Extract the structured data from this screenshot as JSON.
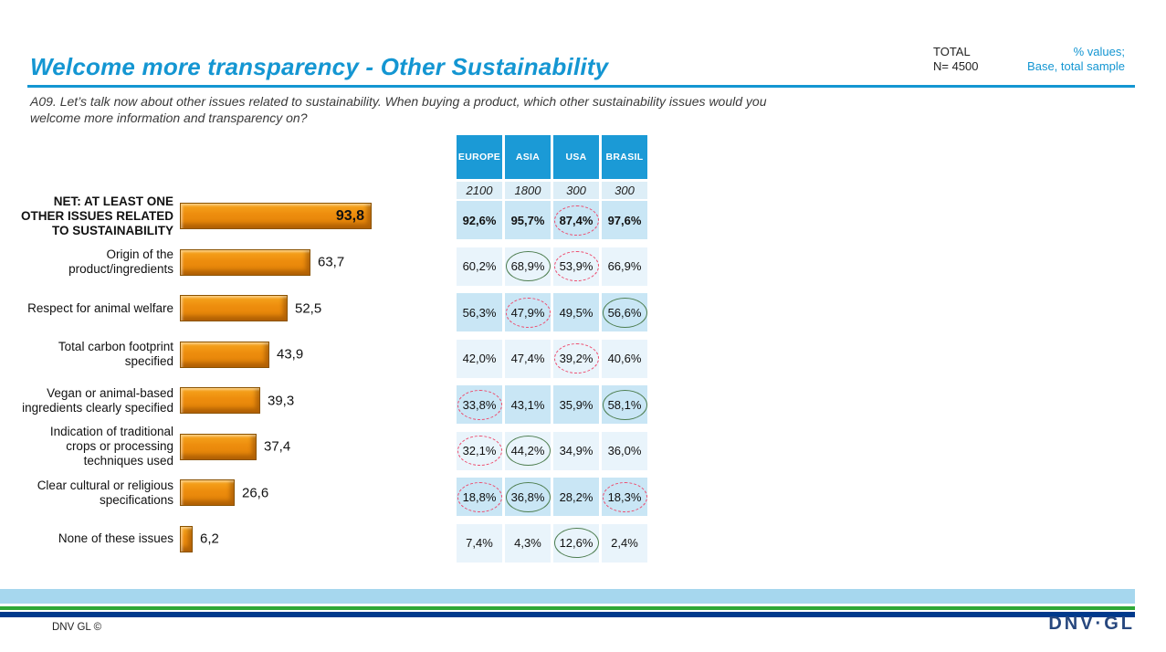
{
  "header": {
    "title": "Welcome more transparency  - Other Sustainability",
    "total_label": "TOTAL",
    "total_n": "N= 4500",
    "values_note": "% values;",
    "base_note": "Base, total sample"
  },
  "question": "A09. Let’s talk now about other issues related to sustainability. When buying a product, which other sustainability issues would you\nwelcome more information and transparency on?",
  "columns": [
    "EUROPE",
    "ASIA",
    "USA",
    "BRASIL"
  ],
  "bases": [
    "2100",
    "1800",
    "300",
    "300"
  ],
  "rows": [
    {
      "label": "NET: AT LEAST ONE\nOTHER ISSUES RELATED\nTO SUSTAINABILITY",
      "bold": true,
      "value": 93.8,
      "value_label": "93,8",
      "value_inside": true,
      "cells": [
        {
          "text": "92,6%",
          "circle": "none"
        },
        {
          "text": "95,7%",
          "circle": "none"
        },
        {
          "text": "87,4%",
          "circle": "red"
        },
        {
          "text": "97,6%",
          "circle": "none"
        }
      ]
    },
    {
      "label": "Origin of the\nproduct/ingredients",
      "bold": false,
      "value": 63.7,
      "value_label": "63,7",
      "value_inside": false,
      "cells": [
        {
          "text": "60,2%",
          "circle": "none"
        },
        {
          "text": "68,9%",
          "circle": "green"
        },
        {
          "text": "53,9%",
          "circle": "red"
        },
        {
          "text": "66,9%",
          "circle": "none"
        }
      ]
    },
    {
      "label": "Respect for animal welfare",
      "bold": false,
      "value": 52.5,
      "value_label": "52,5",
      "value_inside": false,
      "cells": [
        {
          "text": "56,3%",
          "circle": "none"
        },
        {
          "text": "47,9%",
          "circle": "red"
        },
        {
          "text": "49,5%",
          "circle": "none"
        },
        {
          "text": "56,6%",
          "circle": "green"
        }
      ]
    },
    {
      "label": "Total carbon footprint\nspecified",
      "bold": false,
      "value": 43.9,
      "value_label": "43,9",
      "value_inside": false,
      "cells": [
        {
          "text": "42,0%",
          "circle": "none"
        },
        {
          "text": "47,4%",
          "circle": "none"
        },
        {
          "text": "39,2%",
          "circle": "red"
        },
        {
          "text": "40,6%",
          "circle": "none"
        }
      ]
    },
    {
      "label": "Vegan or animal-based\ningredients clearly specified",
      "bold": false,
      "value": 39.3,
      "value_label": "39,3",
      "value_inside": false,
      "cells": [
        {
          "text": "33,8%",
          "circle": "red"
        },
        {
          "text": "43,1%",
          "circle": "none"
        },
        {
          "text": "35,9%",
          "circle": "none"
        },
        {
          "text": "58,1%",
          "circle": "green"
        }
      ]
    },
    {
      "label": "Indication of traditional\ncrops or processing\ntechniques used",
      "bold": false,
      "value": 37.4,
      "value_label": "37,4",
      "value_inside": false,
      "cells": [
        {
          "text": "32,1%",
          "circle": "red"
        },
        {
          "text": "44,2%",
          "circle": "green"
        },
        {
          "text": "34,9%",
          "circle": "none"
        },
        {
          "text": "36,0%",
          "circle": "none"
        }
      ]
    },
    {
      "label": "Clear cultural or religious\nspecifications",
      "bold": false,
      "value": 26.6,
      "value_label": "26,6",
      "value_inside": false,
      "cells": [
        {
          "text": "18,8%",
          "circle": "red"
        },
        {
          "text": "36,8%",
          "circle": "green"
        },
        {
          "text": "28,2%",
          "circle": "none"
        },
        {
          "text": "18,3%",
          "circle": "red"
        }
      ]
    },
    {
      "label": "None of these issues",
      "bold": false,
      "value": 6.2,
      "value_label": "6,2",
      "value_inside": false,
      "cells": [
        {
          "text": "7,4%",
          "circle": "none"
        },
        {
          "text": "4,3%",
          "circle": "none"
        },
        {
          "text": "12,6%",
          "circle": "green"
        },
        {
          "text": "2,4%",
          "circle": "none"
        }
      ]
    }
  ],
  "footer": {
    "copyright": "DNV GL ©",
    "logo": "DNV·GL"
  },
  "colors": {
    "accent_blue": "#1496d2",
    "table_header_blue": "#1b9ad6",
    "row_dark": "#c9e6f5",
    "row_light": "#e9f4fb",
    "bar_orange": "#ee8e0e",
    "circle_green": "#4e7e50",
    "circle_red": "#ee4a6c",
    "footer_lightblue": "#a6d7ee",
    "footer_green": "#2ea836",
    "footer_navy": "#003a8c"
  },
  "chart_data": {
    "type": "bar",
    "orientation": "horizontal",
    "title": "Welcome more transparency - Other Sustainability",
    "subtitle": "A09. Let’s talk now about other issues related to sustainability. When buying a product, which other sustainability issues would you welcome more information and transparency on?",
    "unit": "% values; Base, total sample",
    "categories": [
      "NET: AT LEAST ONE OTHER ISSUES RELATED TO SUSTAINABILITY",
      "Origin of the product/ingredients",
      "Respect for animal welfare",
      "Total carbon footprint specified",
      "Vegan or animal-based ingredients clearly specified",
      "Indication of traditional crops or processing techniques used",
      "Clear cultural or religious specifications",
      "None of these issues"
    ],
    "values": [
      93.8,
      63.7,
      52.5,
      43.9,
      39.3,
      37.4,
      26.6,
      6.2
    ],
    "series": [
      {
        "name": "TOTAL",
        "n": 4500,
        "values": [
          93.8,
          63.7,
          52.5,
          43.9,
          39.3,
          37.4,
          26.6,
          6.2
        ]
      },
      {
        "name": "EUROPE",
        "n": 2100,
        "values": [
          92.6,
          60.2,
          56.3,
          42.0,
          33.8,
          32.1,
          18.8,
          7.4
        ]
      },
      {
        "name": "ASIA",
        "n": 1800,
        "values": [
          95.7,
          68.9,
          47.9,
          47.4,
          43.1,
          44.2,
          36.8,
          4.3
        ]
      },
      {
        "name": "USA",
        "n": 300,
        "values": [
          87.4,
          53.9,
          49.5,
          39.2,
          35.9,
          34.9,
          28.2,
          12.6
        ]
      },
      {
        "name": "BRASIL",
        "n": 300,
        "values": [
          97.6,
          66.9,
          56.6,
          40.6,
          58.1,
          36.0,
          18.3,
          2.4
        ]
      }
    ],
    "annotations": {
      "circled_significantly_high_green": [
        {
          "row": "Origin of the product/ingredients",
          "column": "ASIA",
          "value": 68.9
        },
        {
          "row": "Respect for animal welfare",
          "column": "BRASIL",
          "value": 56.6
        },
        {
          "row": "Vegan or animal-based ingredients clearly specified",
          "column": "BRASIL",
          "value": 58.1
        },
        {
          "row": "Indication of traditional crops or processing techniques used",
          "column": "ASIA",
          "value": 44.2
        },
        {
          "row": "Clear cultural or religious specifications",
          "column": "ASIA",
          "value": 36.8
        },
        {
          "row": "None of these issues",
          "column": "USA",
          "value": 12.6
        }
      ],
      "circled_significantly_low_red_dashed": [
        {
          "row": "NET: AT LEAST ONE OTHER ISSUES RELATED TO SUSTAINABILITY",
          "column": "USA",
          "value": 87.4
        },
        {
          "row": "Origin of the product/ingredients",
          "column": "USA",
          "value": 53.9
        },
        {
          "row": "Respect for animal welfare",
          "column": "ASIA",
          "value": 47.9
        },
        {
          "row": "Total carbon footprint specified",
          "column": "USA",
          "value": 39.2
        },
        {
          "row": "Vegan or animal-based ingredients clearly specified",
          "column": "EUROPE",
          "value": 33.8
        },
        {
          "row": "Indication of traditional crops or processing techniques used",
          "column": "EUROPE",
          "value": 32.1
        },
        {
          "row": "Clear cultural or religious specifications",
          "column": "EUROPE",
          "value": 18.8
        },
        {
          "row": "Clear cultural or religious specifications",
          "column": "BRASIL",
          "value": 18.3
        }
      ]
    },
    "xlim": [
      0,
      100
    ],
    "grid": false,
    "legend_position": "table-columns-top"
  }
}
